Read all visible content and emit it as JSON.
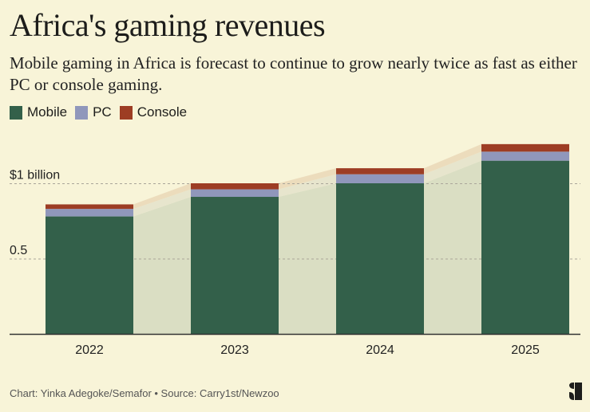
{
  "chart_data": {
    "type": "bar",
    "stacked": true,
    "title": "Africa's gaming revenues",
    "subtitle": "Mobile gaming in Africa is forecast to continue to grow nearly twice as fast as either PC or console gaming.",
    "categories": [
      "2022",
      "2023",
      "2024",
      "2025"
    ],
    "series": [
      {
        "name": "Mobile",
        "color": "#33604a",
        "values": [
          0.78,
          0.91,
          1.0,
          1.15
        ]
      },
      {
        "name": "PC",
        "color": "#9097bb",
        "values": [
          0.05,
          0.05,
          0.06,
          0.06
        ]
      },
      {
        "name": "Console",
        "color": "#9d3d24",
        "values": [
          0.03,
          0.04,
          0.04,
          0.05
        ]
      }
    ],
    "connector_colors": {
      "Mobile": "#dadec3",
      "PC": "#e7e5cd",
      "Console": "#ecdcbc"
    },
    "ylabel": "",
    "xlabel": "",
    "yticks": [
      {
        "value": 0.5,
        "label": "0.5"
      },
      {
        "value": 1.0,
        "label": "$1 billion"
      }
    ],
    "ylim": [
      0,
      1.3
    ],
    "grid": true,
    "legend_position": "top-left"
  },
  "footer": {
    "credit": "Chart: Yinka Adegoke/Semafor • Source: Carry1st/Newzoo"
  },
  "colors": {
    "background": "#f8f4d8",
    "text": "#1d1d1b"
  }
}
